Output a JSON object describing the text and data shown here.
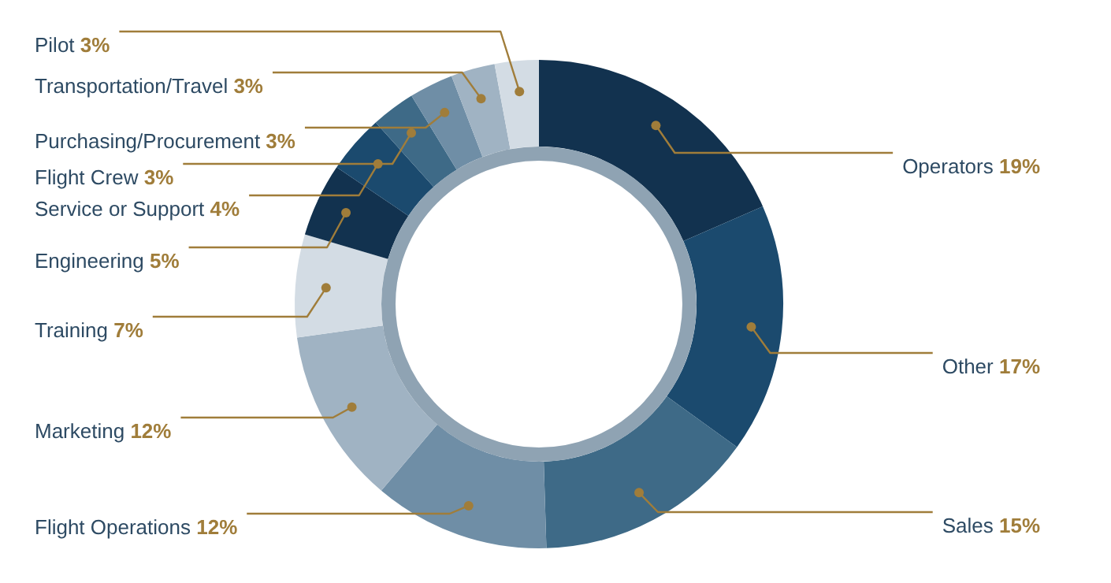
{
  "chart_data": {
    "type": "donut",
    "categories": [
      "Operators",
      "Other",
      "Sales",
      "Flight Operations",
      "Marketing",
      "Training",
      "Engineering",
      "Service or Support",
      "Flight Crew",
      "Purchasing/Procurement",
      "Transportation/Travel",
      "Pilot"
    ],
    "values": [
      19,
      17,
      15,
      12,
      12,
      7,
      5,
      4,
      3,
      3,
      3,
      3
    ],
    "value_labels": [
      "19%",
      "17%",
      "15%",
      "12%",
      "12%",
      "7%",
      "5%",
      "4%",
      "3%",
      "3%",
      "3%",
      "3%"
    ],
    "colors": [
      "#12324f",
      "#1b4a6e",
      "#3e6a87",
      "#6f8ea6",
      "#a0b3c3",
      "#d3dce4",
      "#12324f",
      "#1b4a6e",
      "#3e6a87",
      "#6f8ea6",
      "#a0b3c3",
      "#d3dce4"
    ]
  }
}
